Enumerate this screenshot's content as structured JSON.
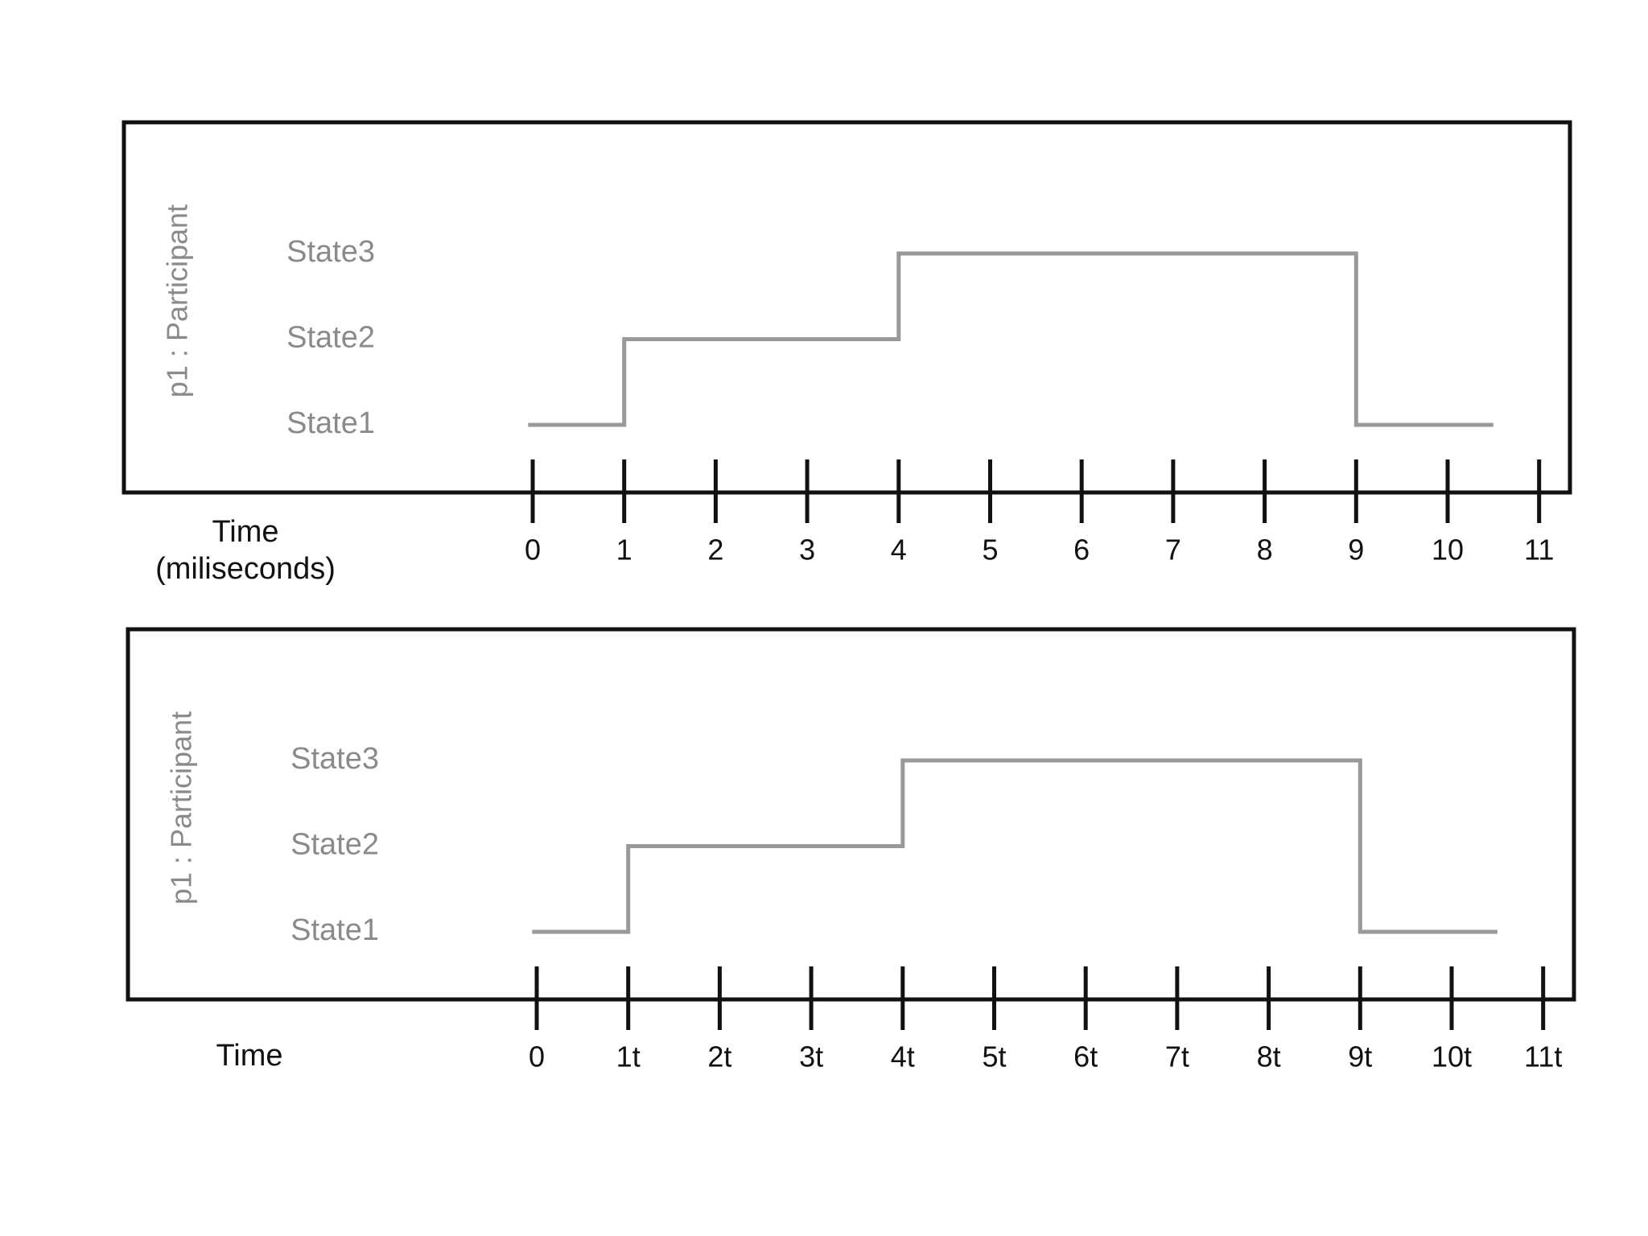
{
  "diagrams": [
    {
      "lifeline": "p1 : Participant",
      "states": [
        "State3",
        "State2",
        "State1"
      ],
      "time_label": [
        "Time",
        "(miliseconds)"
      ],
      "ticks": [
        "0",
        "1",
        "2",
        "3",
        "4",
        "5",
        "6",
        "7",
        "8",
        "9",
        "10",
        "11"
      ]
    },
    {
      "lifeline": "p1 : Participant",
      "states": [
        "State3",
        "State2",
        "State1"
      ],
      "time_label": [
        "Time"
      ],
      "ticks": [
        "0",
        "1t",
        "2t",
        "3t",
        "4t",
        "5t",
        "6t",
        "7t",
        "8t",
        "9t",
        "10t",
        "11t"
      ]
    }
  ]
}
